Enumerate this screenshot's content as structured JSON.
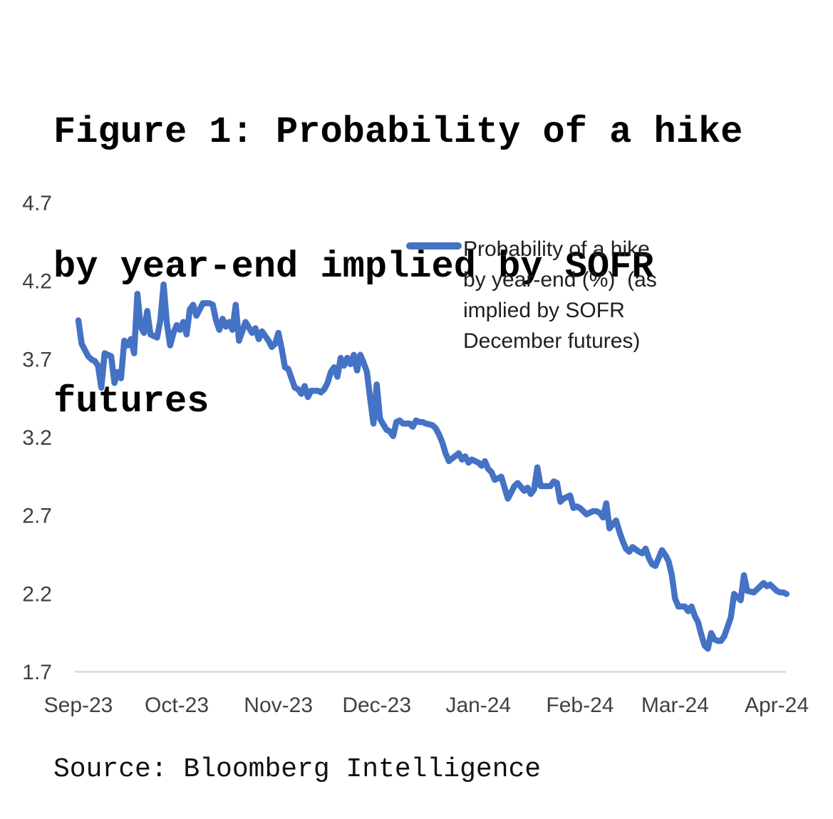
{
  "figure": {
    "title_lines": [
      "Figure 1: Probability of a hike",
      "by year-end implied by SOFR",
      "futures"
    ],
    "source": "Source: Bloomberg Intelligence"
  },
  "legend": {
    "lines": [
      "Probability of a hike",
      "by year-end (%)  (as",
      "implied by SOFR",
      "December futures)"
    ]
  },
  "colors": {
    "line": "#4472C4",
    "axis_line": "#d9d9d9",
    "tick_text": "#404040",
    "title_text": "#000000",
    "legend_text": "#1f1f1f",
    "background": "#ffffff"
  },
  "chart_data": {
    "type": "line",
    "title": "Figure 1: Probability of a hike by year-end implied by SOFR futures",
    "xlabel": "",
    "ylabel": "",
    "grid": false,
    "legend_position": "upper-right-inside",
    "source": "Bloomberg Intelligence",
    "y_axis": {
      "min": 1.7,
      "max": 4.7,
      "ticks": [
        4.7,
        4.2,
        3.7,
        3.2,
        2.7,
        2.2,
        1.7
      ]
    },
    "x_axis": {
      "type": "time",
      "tick_labels": [
        "Sep-23",
        "Oct-23",
        "Nov-23",
        "Dec-23",
        "Jan-24",
        "Feb-24",
        "Mar-24",
        "Apr-24"
      ],
      "tick_dates": [
        "2023-09-01",
        "2023-10-01",
        "2023-11-01",
        "2023-12-01",
        "2024-01-01",
        "2024-02-01",
        "2024-03-01",
        "2024-04-01"
      ]
    },
    "series": [
      {
        "name": "Probability of a hike by year-end (%)  (as implied by SOFR December futures)",
        "color": "#4472C4",
        "points": [
          [
            "2023-09-01",
            3.95
          ],
          [
            "2023-09-02",
            3.8
          ],
          [
            "2023-09-04",
            3.72
          ],
          [
            "2023-09-05",
            3.7
          ],
          [
            "2023-09-06",
            3.69
          ],
          [
            "2023-09-07",
            3.66
          ],
          [
            "2023-09-08",
            3.52
          ],
          [
            "2023-09-09",
            3.74
          ],
          [
            "2023-09-11",
            3.72
          ],
          [
            "2023-09-12",
            3.55
          ],
          [
            "2023-09-13",
            3.62
          ],
          [
            "2023-09-14",
            3.58
          ],
          [
            "2023-09-15",
            3.82
          ],
          [
            "2023-09-16",
            3.79
          ],
          [
            "2023-09-17",
            3.83
          ],
          [
            "2023-09-18",
            3.74
          ],
          [
            "2023-09-19",
            4.12
          ],
          [
            "2023-09-20",
            3.91
          ],
          [
            "2023-09-21",
            3.87
          ],
          [
            "2023-09-22",
            4.01
          ],
          [
            "2023-09-23",
            3.86
          ],
          [
            "2023-09-25",
            3.84
          ],
          [
            "2023-09-26",
            3.95
          ],
          [
            "2023-09-27",
            4.18
          ],
          [
            "2023-09-28",
            3.93
          ],
          [
            "2023-09-29",
            3.79
          ],
          [
            "2023-09-30",
            3.87
          ],
          [
            "2023-10-01",
            3.92
          ],
          [
            "2023-10-02",
            3.89
          ],
          [
            "2023-10-03",
            3.94
          ],
          [
            "2023-10-04",
            3.86
          ],
          [
            "2023-10-05",
            4.02
          ],
          [
            "2023-10-06",
            4.05
          ],
          [
            "2023-10-07",
            3.98
          ],
          [
            "2023-10-09",
            4.06
          ],
          [
            "2023-10-10",
            4.06
          ],
          [
            "2023-10-11",
            4.06
          ],
          [
            "2023-10-12",
            4.05
          ],
          [
            "2023-10-13",
            3.95
          ],
          [
            "2023-10-14",
            3.89
          ],
          [
            "2023-10-15",
            3.96
          ],
          [
            "2023-10-16",
            3.91
          ],
          [
            "2023-10-17",
            3.94
          ],
          [
            "2023-10-18",
            3.89
          ],
          [
            "2023-10-19",
            4.05
          ],
          [
            "2023-10-20",
            3.82
          ],
          [
            "2023-10-22",
            3.94
          ],
          [
            "2023-10-24",
            3.87
          ],
          [
            "2023-10-25",
            3.9
          ],
          [
            "2023-10-26",
            3.83
          ],
          [
            "2023-10-27",
            3.88
          ],
          [
            "2023-10-29",
            3.82
          ],
          [
            "2023-10-30",
            3.78
          ],
          [
            "2023-10-31",
            3.8
          ],
          [
            "2023-11-01",
            3.87
          ],
          [
            "2023-11-02",
            3.77
          ],
          [
            "2023-11-03",
            3.65
          ],
          [
            "2023-11-04",
            3.64
          ],
          [
            "2023-11-06",
            3.52
          ],
          [
            "2023-11-07",
            3.51
          ],
          [
            "2023-11-08",
            3.48
          ],
          [
            "2023-11-09",
            3.53
          ],
          [
            "2023-11-10",
            3.46
          ],
          [
            "2023-11-11",
            3.5
          ],
          [
            "2023-11-13",
            3.5
          ],
          [
            "2023-11-14",
            3.49
          ],
          [
            "2023-11-15",
            3.51
          ],
          [
            "2023-11-16",
            3.55
          ],
          [
            "2023-11-17",
            3.62
          ],
          [
            "2023-11-18",
            3.65
          ],
          [
            "2023-11-19",
            3.59
          ],
          [
            "2023-11-20",
            3.71
          ],
          [
            "2023-11-21",
            3.66
          ],
          [
            "2023-11-22",
            3.71
          ],
          [
            "2023-11-23",
            3.67
          ],
          [
            "2023-11-24",
            3.73
          ],
          [
            "2023-11-25",
            3.63
          ],
          [
            "2023-11-26",
            3.73
          ],
          [
            "2023-11-27",
            3.68
          ],
          [
            "2023-11-28",
            3.62
          ],
          [
            "2023-11-29",
            3.45
          ],
          [
            "2023-11-30",
            3.29
          ],
          [
            "2023-12-01",
            3.54
          ],
          [
            "2023-12-02",
            3.32
          ],
          [
            "2023-12-04",
            3.25
          ],
          [
            "2023-12-05",
            3.24
          ],
          [
            "2023-12-06",
            3.21
          ],
          [
            "2023-12-07",
            3.3
          ],
          [
            "2023-12-08",
            3.31
          ],
          [
            "2023-12-09",
            3.29
          ],
          [
            "2023-12-11",
            3.29
          ],
          [
            "2023-12-12",
            3.27
          ],
          [
            "2023-12-13",
            3.31
          ],
          [
            "2023-12-14",
            3.3
          ],
          [
            "2023-12-15",
            3.3
          ],
          [
            "2023-12-16",
            3.29
          ],
          [
            "2023-12-18",
            3.28
          ],
          [
            "2023-12-19",
            3.26
          ],
          [
            "2023-12-20",
            3.22
          ],
          [
            "2023-12-21",
            3.17
          ],
          [
            "2023-12-22",
            3.1
          ],
          [
            "2023-12-23",
            3.05
          ],
          [
            "2023-12-26",
            3.1
          ],
          [
            "2023-12-27",
            3.06
          ],
          [
            "2023-12-28",
            3.08
          ],
          [
            "2023-12-29",
            3.04
          ],
          [
            "2023-12-30",
            3.06
          ],
          [
            "2024-01-01",
            3.04
          ],
          [
            "2024-01-02",
            3.02
          ],
          [
            "2024-01-03",
            3.05
          ],
          [
            "2024-01-04",
            3.0
          ],
          [
            "2024-01-05",
            2.98
          ],
          [
            "2024-01-06",
            2.93
          ],
          [
            "2024-01-08",
            2.95
          ],
          [
            "2024-01-09",
            2.88
          ],
          [
            "2024-01-10",
            2.81
          ],
          [
            "2024-01-11",
            2.85
          ],
          [
            "2024-01-12",
            2.89
          ],
          [
            "2024-01-13",
            2.91
          ],
          [
            "2024-01-15",
            2.86
          ],
          [
            "2024-01-16",
            2.88
          ],
          [
            "2024-01-17",
            2.84
          ],
          [
            "2024-01-18",
            2.87
          ],
          [
            "2024-01-19",
            3.01
          ],
          [
            "2024-01-20",
            2.89
          ],
          [
            "2024-01-22",
            2.89
          ],
          [
            "2024-01-23",
            2.89
          ],
          [
            "2024-01-24",
            2.92
          ],
          [
            "2024-01-25",
            2.91
          ],
          [
            "2024-01-26",
            2.79
          ],
          [
            "2024-01-27",
            2.81
          ],
          [
            "2024-01-29",
            2.83
          ],
          [
            "2024-01-30",
            2.75
          ],
          [
            "2024-01-31",
            2.76
          ],
          [
            "2024-02-01",
            2.75
          ],
          [
            "2024-02-02",
            2.73
          ],
          [
            "2024-02-03",
            2.71
          ],
          [
            "2024-02-05",
            2.73
          ],
          [
            "2024-02-06",
            2.73
          ],
          [
            "2024-02-07",
            2.72
          ],
          [
            "2024-02-08",
            2.69
          ],
          [
            "2024-02-09",
            2.78
          ],
          [
            "2024-02-10",
            2.62
          ],
          [
            "2024-02-12",
            2.67
          ],
          [
            "2024-02-13",
            2.6
          ],
          [
            "2024-02-14",
            2.54
          ],
          [
            "2024-02-15",
            2.49
          ],
          [
            "2024-02-16",
            2.47
          ],
          [
            "2024-02-17",
            2.5
          ],
          [
            "2024-02-19",
            2.47
          ],
          [
            "2024-02-20",
            2.46
          ],
          [
            "2024-02-21",
            2.49
          ],
          [
            "2024-02-22",
            2.43
          ],
          [
            "2024-02-23",
            2.39
          ],
          [
            "2024-02-24",
            2.38
          ],
          [
            "2024-02-26",
            2.48
          ],
          [
            "2024-02-27",
            2.45
          ],
          [
            "2024-02-28",
            2.41
          ],
          [
            "2024-02-29",
            2.32
          ],
          [
            "2024-03-01",
            2.17
          ],
          [
            "2024-03-02",
            2.12
          ],
          [
            "2024-03-04",
            2.12
          ],
          [
            "2024-03-05",
            2.09
          ],
          [
            "2024-03-06",
            2.12
          ],
          [
            "2024-03-07",
            2.06
          ],
          [
            "2024-03-08",
            2.02
          ],
          [
            "2024-03-09",
            1.94
          ],
          [
            "2024-03-10",
            1.87
          ],
          [
            "2024-03-11",
            1.85
          ],
          [
            "2024-03-12",
            1.95
          ],
          [
            "2024-03-13",
            1.91
          ],
          [
            "2024-03-14",
            1.9
          ],
          [
            "2024-03-15",
            1.9
          ],
          [
            "2024-03-16",
            1.93
          ],
          [
            "2024-03-18",
            2.05
          ],
          [
            "2024-03-19",
            2.2
          ],
          [
            "2024-03-20",
            2.18
          ],
          [
            "2024-03-21",
            2.16
          ],
          [
            "2024-03-22",
            2.32
          ],
          [
            "2024-03-23",
            2.22
          ],
          [
            "2024-03-25",
            2.21
          ],
          [
            "2024-03-26",
            2.23
          ],
          [
            "2024-03-27",
            2.25
          ],
          [
            "2024-03-28",
            2.27
          ],
          [
            "2024-03-29",
            2.25
          ],
          [
            "2024-03-30",
            2.26
          ],
          [
            "2024-04-01",
            2.22
          ],
          [
            "2024-04-02",
            2.21
          ],
          [
            "2024-04-03",
            2.21
          ],
          [
            "2024-04-04",
            2.2
          ]
        ]
      }
    ]
  }
}
